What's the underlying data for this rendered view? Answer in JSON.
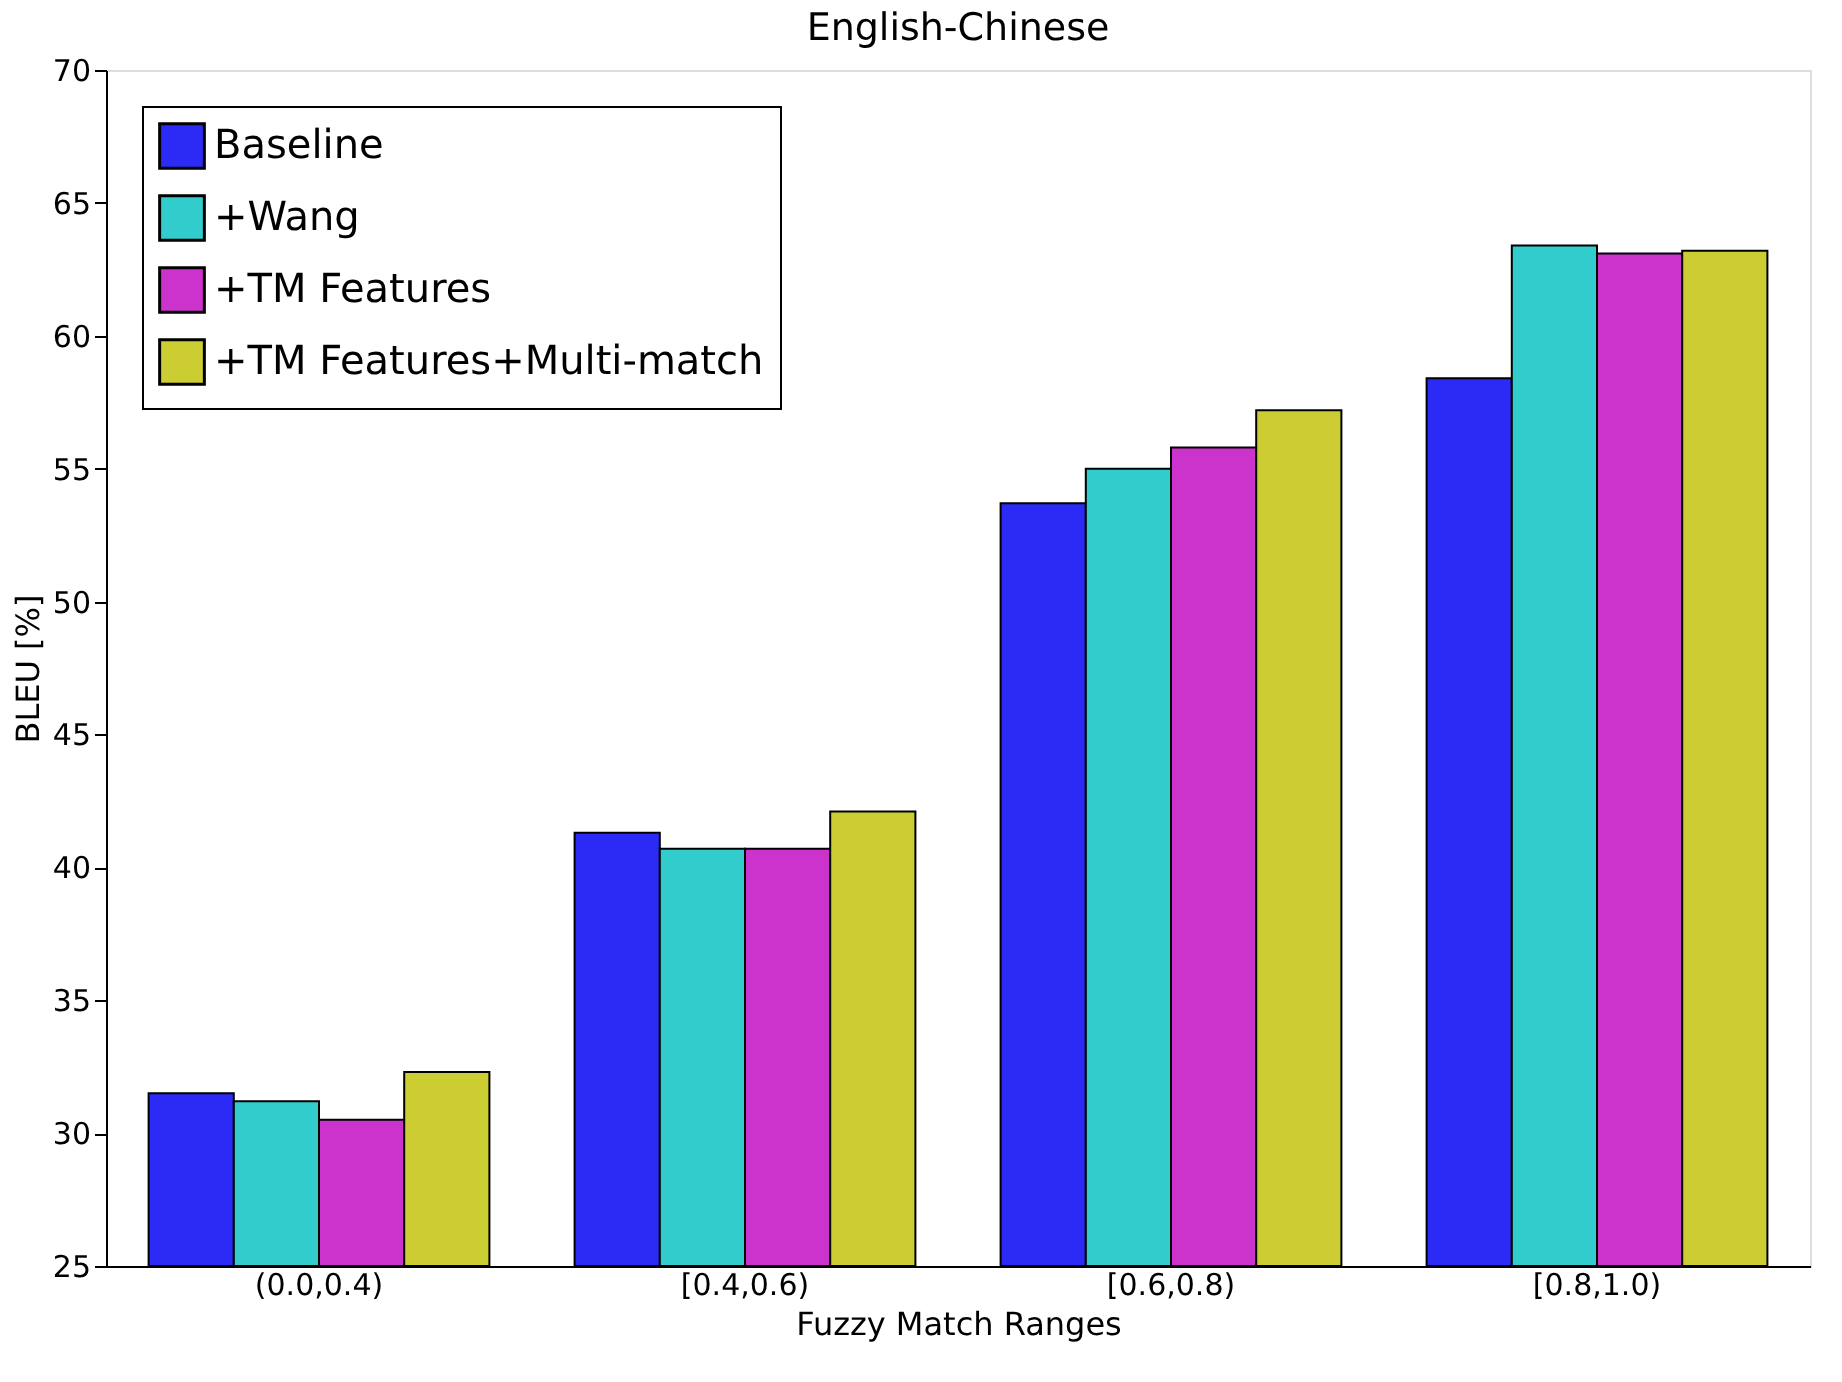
{
  "chart_data": {
    "type": "bar",
    "title": "English-Chinese",
    "xlabel": "Fuzzy Match Ranges",
    "ylabel": "BLEU [%]",
    "categories": [
      "(0.0,0.4)",
      "[0.4,0.6)",
      "[0.6,0.8)",
      "[0.8,1.0)"
    ],
    "series": [
      {
        "name": "Baseline",
        "color": "#2b2bf5",
        "values": [
          31.5,
          41.3,
          53.7,
          58.4
        ]
      },
      {
        "name": "+Wang",
        "color": "#33cccc",
        "values": [
          31.2,
          40.7,
          55.0,
          63.4
        ]
      },
      {
        "name": "+TM Features",
        "color": "#cc33cc",
        "values": [
          30.5,
          40.7,
          55.8,
          63.1
        ]
      },
      {
        "name": "+TM Features+Multi-match",
        "color": "#cccc33",
        "values": [
          32.3,
          42.1,
          57.2,
          63.2
        ]
      }
    ],
    "ylim": [
      25,
      70
    ],
    "yticks": [
      25,
      30,
      35,
      40,
      45,
      50,
      55,
      60,
      65,
      70
    ],
    "grid": false,
    "legend": "top left"
  }
}
